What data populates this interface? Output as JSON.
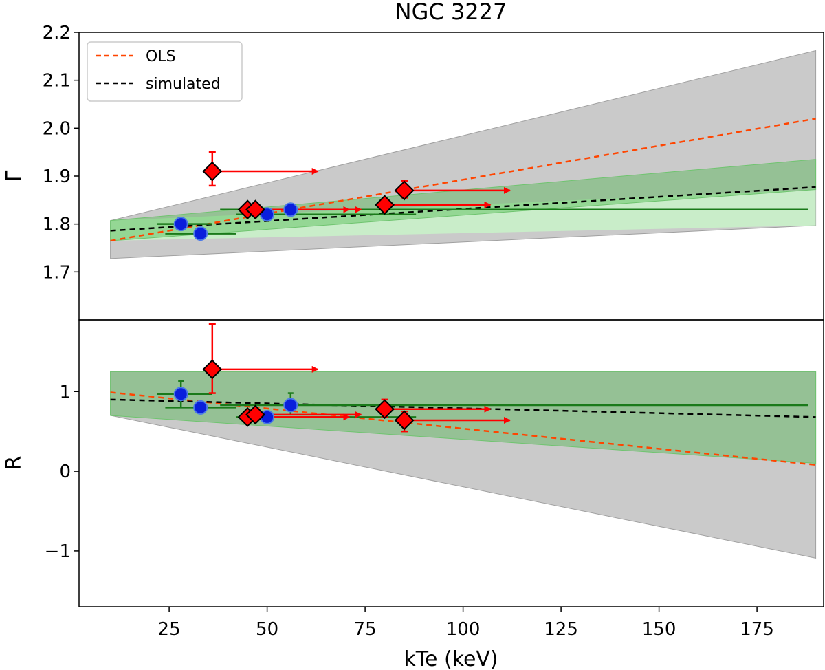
{
  "chart_data": {
    "type": "scatter",
    "title": "NGC 3227",
    "xlabel": "kTe (keV)",
    "xlim": [
      2,
      192
    ],
    "x_ticks": [
      25,
      50,
      75,
      100,
      125,
      150,
      175
    ],
    "x_tick_labels": [
      "25",
      "50",
      "75",
      "100",
      "125",
      "150",
      "175"
    ],
    "legend": {
      "position": "top-left",
      "entries": [
        {
          "label": "OLS",
          "color": "#ff4500",
          "style": "dashed"
        },
        {
          "label": "simulated",
          "color": "#000000",
          "style": "dashed"
        }
      ]
    },
    "colors": {
      "ols": "#ff4500",
      "simulated": "#000000",
      "grey_band": "#b8b8b8",
      "green_band": "#3fb33f",
      "light_green_band": "#c8f5c8",
      "measured_marker": "#0a1edc",
      "measured_error": "#1a7a1a",
      "limit_marker": "#ff0000",
      "limit_arrow": "#ff0000"
    },
    "panels": [
      {
        "id": "gamma",
        "ylabel": "Γ",
        "ylim": [
          1.6,
          2.2
        ],
        "y_ticks": [
          1.7,
          1.8,
          1.9,
          2.0,
          2.1,
          2.2
        ],
        "y_tick_labels": [
          "1.7",
          "1.8",
          "1.9",
          "2.0",
          "2.1",
          "2.2"
        ],
        "ols_line": {
          "x": [
            10,
            190
          ],
          "y": [
            1.765,
            2.02
          ]
        },
        "simulated_line": {
          "x": [
            10,
            190
          ],
          "y": [
            1.786,
            1.877
          ]
        },
        "grey_band": {
          "x": [
            10,
            190
          ],
          "lower": [
            1.728,
            1.797
          ],
          "upper": [
            1.807,
            2.162
          ]
        },
        "green_band": {
          "x": [
            10,
            190
          ],
          "lower": [
            1.765,
            1.872
          ],
          "upper": [
            1.807,
            1.935
          ]
        },
        "light_green_band": {
          "x": [
            10,
            190
          ],
          "lower": [
            1.765,
            1.797
          ],
          "upper": [
            1.807,
            1.872
          ]
        },
        "measured_points": [
          {
            "x": 28,
            "y": 1.8,
            "xerr": [
              22,
              36
            ]
          },
          {
            "x": 33,
            "y": 1.78,
            "xerr": [
              24,
              42
            ]
          },
          {
            "x": 50,
            "y": 1.82,
            "xerr": [
              42,
              88
            ]
          },
          {
            "x": 56,
            "y": 1.83,
            "xerr": [
              38,
              188
            ]
          }
        ],
        "lower_limit_points": [
          {
            "x": 36,
            "y": 1.91,
            "yerr": [
              1.88,
              1.95
            ],
            "arrow_to": 63
          },
          {
            "x": 45,
            "y": 1.83,
            "yerr": [
              1.82,
              1.84
            ],
            "arrow_to": 71
          },
          {
            "x": 47,
            "y": 1.83,
            "yerr": [
              1.82,
              1.84
            ],
            "arrow_to": 74
          },
          {
            "x": 80,
            "y": 1.84,
            "yerr": [
              1.83,
              1.85
            ],
            "arrow_to": 107
          },
          {
            "x": 85,
            "y": 1.87,
            "yerr": [
              1.855,
              1.89
            ],
            "arrow_to": 112
          }
        ]
      },
      {
        "id": "reflection",
        "ylabel": "R",
        "ylim": [
          -1.7,
          1.9
        ],
        "y_ticks": [
          -1,
          0,
          1
        ],
        "y_tick_labels": [
          "−1",
          "0",
          "1"
        ],
        "ols_line": {
          "x": [
            10,
            190
          ],
          "y": [
            0.99,
            0.08
          ]
        },
        "simulated_line": {
          "x": [
            10,
            190
          ],
          "y": [
            0.9,
            0.68
          ]
        },
        "grey_band": {
          "x": [
            10,
            190
          ],
          "lower": [
            0.7,
            -1.09
          ],
          "upper": [
            1.25,
            1.25
          ]
        },
        "green_band": {
          "x": [
            10,
            190
          ],
          "lower": [
            0.7,
            0.1
          ],
          "upper": [
            1.25,
            1.25
          ]
        },
        "measured_points": [
          {
            "x": 28,
            "y": 0.97,
            "xerr": [
              22,
              36
            ],
            "yerr": [
              0.8,
              1.13
            ]
          },
          {
            "x": 33,
            "y": 0.8,
            "xerr": [
              24,
              42
            ]
          },
          {
            "x": 50,
            "y": 0.68,
            "xerr": [
              42,
              88
            ]
          },
          {
            "x": 56,
            "y": 0.83,
            "xerr": [
              38,
              188
            ],
            "yerr": [
              0.7,
              0.98
            ]
          }
        ],
        "lower_limit_points": [
          {
            "x": 36,
            "y": 1.28,
            "yerr": [
              0.98,
              1.85
            ],
            "arrow_to": 63
          },
          {
            "x": 45,
            "y": 0.68,
            "yerr": [
              0.62,
              0.74
            ],
            "arrow_to": 71
          },
          {
            "x": 47,
            "y": 0.71,
            "yerr": [
              0.65,
              0.77
            ],
            "arrow_to": 74
          },
          {
            "x": 80,
            "y": 0.78,
            "yerr": [
              0.68,
              0.9
            ],
            "arrow_to": 107
          },
          {
            "x": 85,
            "y": 0.64,
            "yerr": [
              0.5,
              0.75
            ],
            "arrow_to": 112
          }
        ]
      }
    ]
  }
}
